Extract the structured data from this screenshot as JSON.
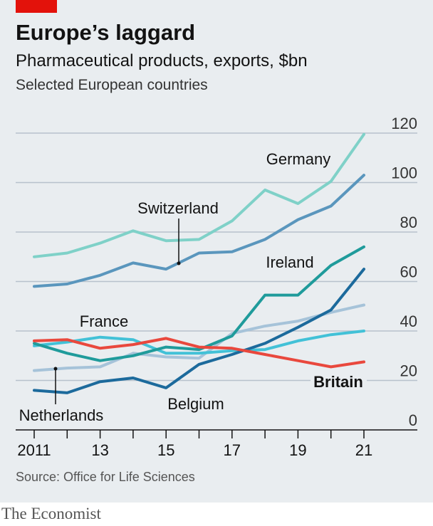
{
  "header": {
    "title": "Europe’s laggard",
    "subtitle": "Pharmaceutical products, exports, $bn",
    "note": "Selected European countries"
  },
  "footer": {
    "source": "Source: Office for Life Sciences",
    "brand": "The Economist"
  },
  "colors": {
    "background": "#e9edf0",
    "accent_bar": "#e3120b",
    "gridline": "#b8c2cc",
    "axis": "#121212"
  },
  "chart_data": {
    "type": "line",
    "title": "Europe’s laggard",
    "subtitle": "Pharmaceutical products, exports, $bn",
    "x": [
      2011,
      2012,
      2013,
      2014,
      2015,
      2016,
      2017,
      2018,
      2019,
      2020,
      2021
    ],
    "x_tick_labels": [
      "2011",
      "13",
      "15",
      "17",
      "19",
      "21"
    ],
    "x_tick_values": [
      2011,
      2013,
      2015,
      2017,
      2019,
      2021
    ],
    "y_ticks": [
      0,
      20,
      40,
      60,
      80,
      100,
      120
    ],
    "ylim": [
      0,
      120
    ],
    "y_axis_position": "right",
    "grid": true,
    "legend": "direct labels",
    "series": [
      {
        "name": "Germany",
        "color": "#7fd1c8",
        "values": [
          70,
          71.5,
          75.5,
          80.5,
          76.5,
          77,
          84.5,
          97,
          91.5,
          100.5,
          119.5
        ]
      },
      {
        "name": "Switzerland",
        "color": "#5a96bd",
        "values": [
          58,
          59,
          62.5,
          67.5,
          65,
          71.5,
          72,
          77,
          85,
          90.5,
          103
        ]
      },
      {
        "name": "Ireland",
        "color": "#1f9b9b",
        "values": [
          35,
          31,
          28,
          30,
          33.5,
          32.5,
          38,
          54.5,
          54.5,
          66.5,
          74
        ]
      },
      {
        "name": "Belgium",
        "color": "#1c6a9c",
        "values": [
          16,
          15,
          19.5,
          21,
          17,
          26.5,
          30.5,
          35,
          41.5,
          48.5,
          65
        ]
      },
      {
        "name": "France",
        "color": "#42c1d7",
        "values": [
          34,
          35.5,
          37.5,
          36.5,
          31,
          31,
          32,
          32.5,
          36,
          38.5,
          40
        ]
      },
      {
        "name": "Netherlands",
        "color": "#a6c3d9",
        "values": [
          24,
          25,
          25.5,
          31,
          29.5,
          29,
          39,
          42,
          44,
          47.5,
          50.5
        ]
      },
      {
        "name": "Britain",
        "color": "#e9483d",
        "values": [
          36,
          36.5,
          33,
          34.5,
          37,
          33.5,
          33,
          30.5,
          28,
          25.5,
          27.5
        ]
      }
    ]
  }
}
